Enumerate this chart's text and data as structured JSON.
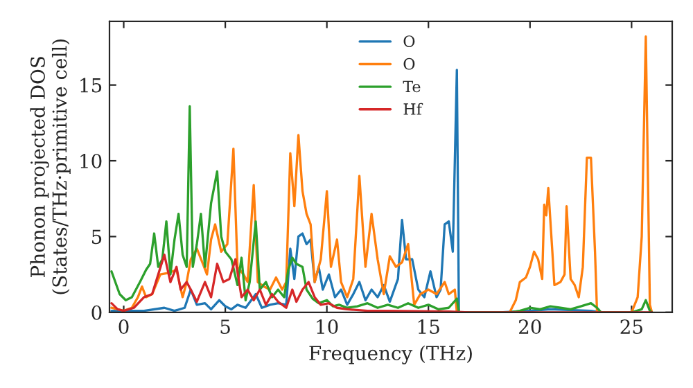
{
  "chart_data": {
    "type": "line",
    "xlabel": "Frequency (THz)",
    "ylabel": "Phonon projected DOS\n(States/THz·primitive cell)",
    "xlim": [
      -0.7,
      27
    ],
    "ylim": [
      0,
      19.2
    ],
    "xticks": [
      0,
      5,
      10,
      15,
      20,
      25
    ],
    "yticks": [
      0,
      5,
      10,
      15
    ],
    "grid": false,
    "legend": "top",
    "series": [
      {
        "name": "O",
        "color": "#1f77b4",
        "x": [
          -0.6,
          1,
          2,
          2.5,
          3,
          3.3,
          3.6,
          4,
          4.3,
          4.7,
          5.0,
          5.3,
          5.6,
          6,
          6.5,
          6.8,
          7.2,
          7.6,
          8.0,
          8.2,
          8.4,
          8.6,
          8.8,
          9.0,
          9.2,
          9.4,
          9.6,
          9.8,
          10.1,
          10.4,
          10.7,
          11,
          11.3,
          11.6,
          11.9,
          12.2,
          12.5,
          12.8,
          13.1,
          13.5,
          13.7,
          13.9,
          14.2,
          14.5,
          14.8,
          15.1,
          15.4,
          15.6,
          15.8,
          16.0,
          16.2,
          16.4,
          16.5,
          18.5,
          20,
          21,
          23,
          23.5
        ],
        "values": [
          0.1,
          0.1,
          0.3,
          0.1,
          0.3,
          1.5,
          0.5,
          0.6,
          0.2,
          0.8,
          0.4,
          0.2,
          0.5,
          0.3,
          1.2,
          0.3,
          0.5,
          0.6,
          0.5,
          4.2,
          2.2,
          5.0,
          5.2,
          4.5,
          4.8,
          2.0,
          3.0,
          1.5,
          2.5,
          1.0,
          1.5,
          0.5,
          1.2,
          2.0,
          0.8,
          1.5,
          1.0,
          1.8,
          0.7,
          2.2,
          6.1,
          3.5,
          3.5,
          1.5,
          1.0,
          2.7,
          1.0,
          1.5,
          5.8,
          6.0,
          4.0,
          16.0,
          0,
          0,
          0.1,
          0.2,
          0.1,
          0
        ]
      },
      {
        "name": "O",
        "color": "#ff7f0e",
        "x": [
          -0.6,
          0,
          0.4,
          0.7,
          0.9,
          1.1,
          1.4,
          1.8,
          2.2,
          2.6,
          2.9,
          3.1,
          3.3,
          3.6,
          3.9,
          4.1,
          4.3,
          4.5,
          4.8,
          5.1,
          5.4,
          5.6,
          5.9,
          6.1,
          6.4,
          6.6,
          6.9,
          7.2,
          7.5,
          7.8,
          8.0,
          8.2,
          8.4,
          8.6,
          8.8,
          9.0,
          9.2,
          9.4,
          9.7,
          10.0,
          10.2,
          10.5,
          10.7,
          11.0,
          11.3,
          11.6,
          11.9,
          12.2,
          12.5,
          12.8,
          13.1,
          13.4,
          13.7,
          14.0,
          14.3,
          14.6,
          15.0,
          15.4,
          15.8,
          16.0,
          16.3,
          16.4,
          19.0,
          19.3,
          19.5,
          19.8,
          20.0,
          20.2,
          20.4,
          20.6,
          20.7,
          20.8,
          20.9,
          21.1,
          21.2,
          21.5,
          21.7,
          21.8,
          22.0,
          22.2,
          22.4,
          22.6,
          22.8,
          23.0,
          23.2,
          23.3,
          25.0,
          25.3,
          25.5,
          25.7,
          25.9,
          26.0
        ],
        "values": [
          0.3,
          0.1,
          0.3,
          1.0,
          1.7,
          1.0,
          1.2,
          2.5,
          2.6,
          2.8,
          1.0,
          2.0,
          3.5,
          4.2,
          3.2,
          2.5,
          4.8,
          5.8,
          4.0,
          4.5,
          10.8,
          3.0,
          2.5,
          2.0,
          8.4,
          2.0,
          1.7,
          1.5,
          2.3,
          1.5,
          2.0,
          10.5,
          7.0,
          11.7,
          8.0,
          6.5,
          5.8,
          2.0,
          3.5,
          8.0,
          3.0,
          4.8,
          2.0,
          1.0,
          2.2,
          9.0,
          3.0,
          6.5,
          3.5,
          1.2,
          3.7,
          3.0,
          3.3,
          4.5,
          0.5,
          1.2,
          1.5,
          1.2,
          2.0,
          1.2,
          1.5,
          0,
          0,
          0.8,
          2.0,
          2.3,
          3.0,
          4.0,
          3.5,
          2.2,
          7.1,
          6.4,
          8.2,
          4.0,
          1.8,
          2.0,
          2.5,
          7.0,
          2.2,
          1.8,
          1.0,
          3.0,
          10.2,
          10.2,
          4.0,
          0,
          0,
          1.0,
          5.0,
          18.2,
          0.5,
          0
        ]
      },
      {
        "name": "Te",
        "color": "#2ca02c",
        "x": [
          -0.6,
          -0.2,
          0.1,
          0.4,
          0.8,
          1.1,
          1.3,
          1.5,
          1.7,
          1.9,
          2.1,
          2.3,
          2.5,
          2.7,
          2.9,
          3.1,
          3.25,
          3.4,
          3.6,
          3.8,
          4.0,
          4.3,
          4.6,
          4.8,
          5.0,
          5.3,
          5.6,
          5.8,
          6.0,
          6.2,
          6.5,
          6.7,
          7.0,
          7.3,
          7.6,
          7.9,
          8.1,
          8.3,
          8.5,
          8.8,
          9.0,
          9.3,
          9.6,
          10.0,
          10.3,
          10.6,
          11,
          11.5,
          12,
          12.5,
          13,
          13.5,
          14,
          14.5,
          15,
          15.5,
          16,
          16.4,
          16.5,
          19,
          19.5,
          20,
          20.5,
          21,
          21.5,
          22,
          22.5,
          23,
          23.3,
          23.5,
          25,
          25.5,
          25.7,
          25.9,
          26
        ],
        "values": [
          2.7,
          1.2,
          0.8,
          1.0,
          2.0,
          2.8,
          3.2,
          5.2,
          3.0,
          3.5,
          6.0,
          2.5,
          4.8,
          6.5,
          3.8,
          3.0,
          13.6,
          3.0,
          4.5,
          6.5,
          3.0,
          7.2,
          9.3,
          5.0,
          4.0,
          3.5,
          1.8,
          3.6,
          0.8,
          2.0,
          6.0,
          1.5,
          2.0,
          1.0,
          1.5,
          1.0,
          2.8,
          3.6,
          3.2,
          3.0,
          1.5,
          0.9,
          0.6,
          0.8,
          0.4,
          0.5,
          0.3,
          0.4,
          0.6,
          0.3,
          0.5,
          0.3,
          0.6,
          0.3,
          0.5,
          0.2,
          0.3,
          0.9,
          0,
          0,
          0.1,
          0.3,
          0.2,
          0.4,
          0.3,
          0.2,
          0.4,
          0.6,
          0.3,
          0,
          0,
          0.2,
          0.8,
          0.1,
          0
        ]
      },
      {
        "name": "Hf",
        "color": "#d62728",
        "x": [
          -0.6,
          -0.3,
          0,
          0.5,
          1.0,
          1.4,
          1.7,
          2.0,
          2.3,
          2.6,
          2.8,
          3.1,
          3.3,
          3.6,
          4.0,
          4.3,
          4.6,
          4.9,
          5.2,
          5.5,
          5.8,
          6.1,
          6.4,
          6.7,
          7.0,
          7.3,
          7.6,
          8.0,
          8.3,
          8.5,
          8.8,
          9.1,
          9.4,
          9.7,
          10.1,
          10.5,
          11,
          12,
          13,
          16,
          17,
          26
        ],
        "values": [
          0.6,
          0.2,
          0.1,
          0.3,
          1.0,
          1.2,
          2.5,
          3.8,
          2.0,
          3.0,
          1.5,
          2.0,
          1.5,
          0.7,
          2.0,
          1.0,
          3.2,
          2.0,
          2.2,
          3.5,
          1.0,
          1.5,
          0.8,
          1.5,
          0.5,
          1.2,
          0.7,
          0.3,
          1.5,
          0.7,
          1.5,
          2.0,
          1.0,
          0.5,
          0.6,
          0.3,
          0.2,
          0.1,
          0.1,
          0.05,
          0,
          0
        ]
      }
    ]
  }
}
